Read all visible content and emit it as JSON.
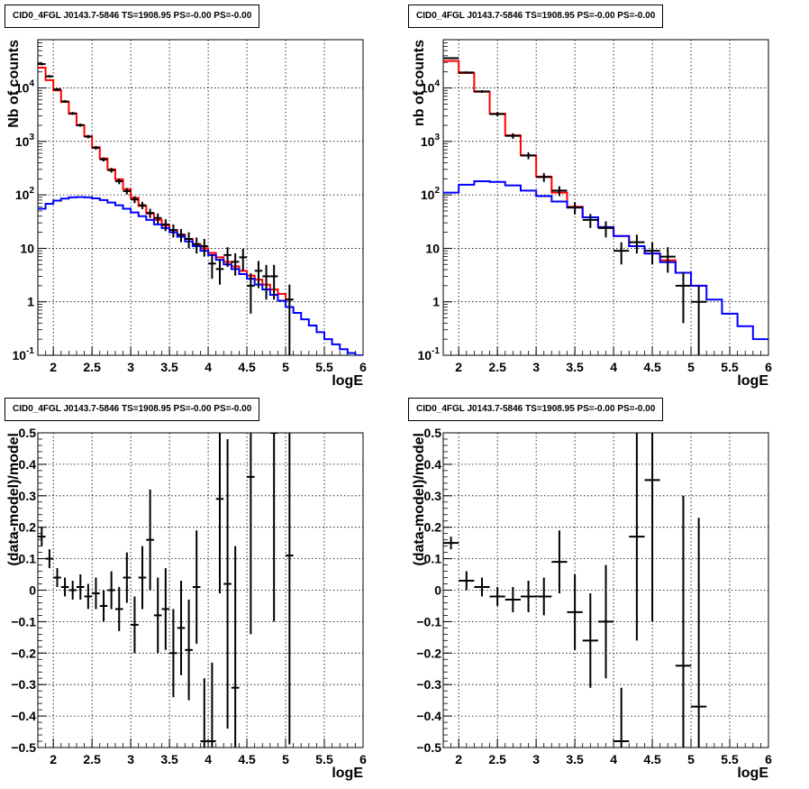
{
  "chart_data": [
    {
      "type": "line",
      "title": "CID0_4FGL J0143.7-5846 TS=1908.95 PS=-0.00 PS=-0.00",
      "xlabel": "logE",
      "ylabel": "Nb of counts",
      "xlim": [
        1.8,
        6
      ],
      "ylim": [
        0.1,
        80000
      ],
      "yscale": "log",
      "grid": true,
      "xticks": [
        "2",
        "2.5",
        "3",
        "3.5",
        "4",
        "4.5",
        "5",
        "5.5",
        "6"
      ],
      "yticks": [
        "10^-1",
        "1",
        "10",
        "10^2",
        "10^3",
        "10^4"
      ],
      "series": [
        {
          "color": "#ff0000",
          "style": "step",
          "x": [
            1.8,
            1.9,
            2.0,
            2.1,
            2.2,
            2.3,
            2.4,
            2.5,
            2.6,
            2.7,
            2.8,
            2.9,
            3.0,
            3.1,
            3.2,
            3.3,
            3.4,
            3.5,
            3.6,
            3.7,
            3.8,
            3.9,
            4.0,
            4.1,
            4.2,
            4.3,
            4.4,
            4.5,
            4.6,
            4.7,
            4.8,
            4.9,
            5.0
          ],
          "values": [
            24000,
            14000,
            9000,
            5500,
            3300,
            2000,
            1250,
            780,
            480,
            300,
            195,
            128,
            88,
            62,
            45,
            34,
            27,
            22,
            18,
            15,
            12,
            10,
            8.2,
            6.8,
            5.6,
            4.6,
            3.8,
            3.1,
            2.6,
            2.1,
            1.7,
            1.4,
            1.1
          ]
        },
        {
          "color": "#0000ff",
          "style": "step",
          "x": [
            1.8,
            1.9,
            2.0,
            2.1,
            2.2,
            2.3,
            2.4,
            2.5,
            2.6,
            2.7,
            2.8,
            2.9,
            3.0,
            3.1,
            3.2,
            3.3,
            3.4,
            3.5,
            3.6,
            3.7,
            3.8,
            3.9,
            4.0,
            4.1,
            4.2,
            4.3,
            4.4,
            4.5,
            4.6,
            4.7,
            4.8,
            4.9,
            5.0,
            5.1,
            5.2,
            5.3,
            5.4,
            5.5,
            5.6,
            5.7,
            5.8,
            5.9
          ],
          "values": [
            55,
            68,
            78,
            85,
            90,
            91,
            90,
            86,
            80,
            72,
            64,
            55,
            47,
            40,
            34,
            28,
            24,
            20,
            16.5,
            13.5,
            11,
            9,
            7.5,
            6.1,
            5,
            4.1,
            3.3,
            2.7,
            2.1,
            1.7,
            1.35,
            1.05,
            0.8,
            0.62,
            0.47,
            0.36,
            0.27,
            0.2,
            0.16,
            0.13,
            0.11,
            0.1
          ]
        }
      ],
      "data_points": {
        "color": "#000000",
        "x": [
          1.85,
          1.95,
          2.05,
          2.15,
          2.25,
          2.35,
          2.45,
          2.55,
          2.65,
          2.75,
          2.85,
          2.95,
          3.05,
          3.15,
          3.25,
          3.35,
          3.45,
          3.55,
          3.65,
          3.75,
          3.85,
          3.95,
          4.05,
          4.15,
          4.25,
          4.35,
          4.45,
          4.55,
          4.65,
          4.75,
          4.85,
          5.05
        ],
        "y": [
          28000,
          16500,
          9400,
          5600,
          3350,
          2020,
          1230,
          760,
          460,
          290,
          180,
          118,
          82,
          64,
          46,
          37,
          28,
          22,
          18,
          15,
          12,
          11,
          5.2,
          4.1,
          7.5,
          5.6,
          6.8,
          2.0,
          3.8,
          3.0,
          3.0,
          1.1
        ],
        "yerr_lo": [
          1500,
          900,
          500,
          320,
          210,
          140,
          90,
          60,
          40,
          30,
          22,
          16,
          12,
          10,
          9,
          8,
          7,
          6,
          5,
          5,
          4,
          4,
          2.5,
          2.0,
          3.0,
          2.5,
          3.0,
          1.4,
          2.0,
          1.9,
          1.9,
          1.0
        ],
        "yerr_hi": [
          1500,
          900,
          500,
          320,
          210,
          140,
          90,
          60,
          40,
          30,
          22,
          16,
          12,
          10,
          9,
          8,
          7,
          6,
          5,
          5,
          4,
          4,
          2.5,
          2.0,
          3.0,
          2.5,
          3.0,
          1.4,
          2.0,
          1.9,
          1.9,
          1.0
        ],
        "xerr": 0.05
      }
    },
    {
      "type": "line",
      "title": "CID0_4FGL J0143.7-5846 TS=1908.95 PS=-0.00 PS=-0.00",
      "xlabel": "logE",
      "ylabel": "nb of counts",
      "xlim": [
        1.8,
        6
      ],
      "ylim": [
        0.1,
        80000
      ],
      "yscale": "log",
      "grid": true,
      "xticks": [
        "2",
        "2.5",
        "3",
        "3.5",
        "4",
        "4.5",
        "5",
        "5.5",
        "6"
      ],
      "yticks": [
        "10^-1",
        "1",
        "10",
        "10^2",
        "10^3",
        "10^4"
      ],
      "series": [
        {
          "color": "#ff0000",
          "style": "step",
          "x": [
            1.8,
            2.0,
            2.2,
            2.4,
            2.6,
            2.8,
            3.0,
            3.2,
            3.4,
            3.6,
            3.8,
            4.0,
            4.2,
            4.4,
            4.6,
            4.8,
            5.0
          ],
          "values": [
            32000,
            19000,
            8500,
            3300,
            1300,
            550,
            220,
            110,
            60,
            38,
            25,
            17,
            11,
            8,
            6,
            3.5,
            2
          ]
        },
        {
          "color": "#0000ff",
          "style": "step",
          "x": [
            1.8,
            2.0,
            2.2,
            2.4,
            2.6,
            2.8,
            3.0,
            3.2,
            3.4,
            3.6,
            3.8,
            4.0,
            4.2,
            4.4,
            4.6,
            4.8,
            5.0,
            5.2,
            5.4,
            5.6,
            5.8
          ],
          "values": [
            110,
            155,
            180,
            175,
            150,
            120,
            95,
            75,
            58,
            38,
            25,
            17,
            11,
            8,
            5.5,
            3.5,
            2,
            1.1,
            0.6,
            0.35,
            0.2
          ]
        }
      ],
      "data_points": {
        "color": "#000000",
        "x": [
          1.9,
          2.1,
          2.3,
          2.5,
          2.7,
          2.9,
          3.1,
          3.3,
          3.5,
          3.7,
          3.9,
          4.1,
          4.3,
          4.5,
          4.7,
          4.9,
          5.1
        ],
        "y": [
          36000,
          19500,
          8600,
          3250,
          1270,
          545,
          215,
          120,
          58,
          34,
          24,
          9,
          13,
          9,
          7,
          2,
          1
        ],
        "yerr_lo": [
          1500,
          900,
          500,
          300,
          150,
          80,
          40,
          25,
          15,
          10,
          8,
          4,
          5,
          4,
          3.5,
          1.6,
          0.95
        ],
        "yerr_hi": [
          1500,
          900,
          500,
          300,
          150,
          80,
          40,
          25,
          15,
          10,
          8,
          4,
          5,
          4,
          3.5,
          1.6,
          0.95
        ],
        "xerr": 0.1
      }
    },
    {
      "type": "scatter",
      "title": "CID0_4FGL J0143.7-5846 TS=1908.95 PS=-0.00 PS=-0.00",
      "xlabel": "logE",
      "ylabel": "(data-model)/model",
      "xlim": [
        1.8,
        6
      ],
      "ylim": [
        -0.5,
        0.5
      ],
      "grid": true,
      "xticks": [
        "2",
        "2.5",
        "3",
        "3.5",
        "4",
        "4.5",
        "5",
        "5.5",
        "6"
      ],
      "yticks": [
        "−0.5",
        "−0.4",
        "−0.3",
        "−0.2",
        "−0.1",
        "0",
        "0.1",
        "0.2",
        "0.3",
        "0.4",
        "0.5"
      ],
      "data_points": {
        "color": "#000000",
        "x": [
          1.85,
          1.95,
          2.05,
          2.15,
          2.25,
          2.35,
          2.45,
          2.55,
          2.65,
          2.75,
          2.85,
          2.95,
          3.05,
          3.15,
          3.25,
          3.35,
          3.45,
          3.55,
          3.65,
          3.75,
          3.85,
          3.95,
          4.05,
          4.15,
          4.25,
          4.35,
          4.55,
          4.85,
          5.05
        ],
        "y": [
          0.17,
          0.1,
          0.04,
          0.01,
          0.0,
          0.01,
          -0.02,
          -0.01,
          -0.05,
          0.0,
          -0.06,
          0.04,
          -0.11,
          0.04,
          0.16,
          -0.08,
          -0.06,
          -0.2,
          -0.12,
          -0.19,
          0.01,
          -0.48,
          -0.48,
          0.29,
          0.02,
          -0.31,
          0.36,
          0.5,
          0.11
        ],
        "yerr": [
          0.03,
          0.03,
          0.03,
          0.03,
          0.03,
          0.04,
          0.04,
          0.05,
          0.05,
          0.06,
          0.07,
          0.08,
          0.09,
          0.1,
          0.16,
          0.12,
          0.13,
          0.14,
          0.15,
          0.16,
          0.18,
          0.2,
          0.25,
          0.3,
          0.46,
          0.45,
          0.5,
          0.6,
          0.6
        ],
        "xerr": 0.05
      }
    },
    {
      "type": "scatter",
      "title": "CID0_4FGL J0143.7-5846 TS=1908.95 PS=-0.00 PS=-0.00",
      "xlabel": "logE",
      "ylabel": "(data-model)/model",
      "xlim": [
        1.8,
        6
      ],
      "ylim": [
        -0.5,
        0.5
      ],
      "grid": true,
      "xticks": [
        "2",
        "2.5",
        "3",
        "3.5",
        "4",
        "4.5",
        "5",
        "5.5",
        "6"
      ],
      "yticks": [
        "−0.5",
        "−0.4",
        "−0.3",
        "−0.2",
        "−0.1",
        "0",
        "0.1",
        "0.2",
        "0.3",
        "0.4",
        "0.5"
      ],
      "data_points": {
        "color": "#000000",
        "x": [
          1.9,
          2.1,
          2.3,
          2.5,
          2.7,
          2.9,
          3.1,
          3.3,
          3.5,
          3.7,
          3.9,
          4.1,
          4.3,
          4.5,
          4.9,
          5.1
        ],
        "y": [
          0.15,
          0.03,
          0.01,
          -0.02,
          -0.03,
          -0.02,
          -0.02,
          0.09,
          -0.07,
          -0.16,
          -0.1,
          -0.48,
          0.17,
          0.35,
          -0.24,
          -0.37
        ],
        "yerr": [
          0.02,
          0.03,
          0.03,
          0.03,
          0.04,
          0.05,
          0.06,
          0.1,
          0.12,
          0.15,
          0.18,
          0.17,
          0.33,
          0.45,
          0.54,
          0.6
        ],
        "xerr": 0.1
      }
    }
  ]
}
